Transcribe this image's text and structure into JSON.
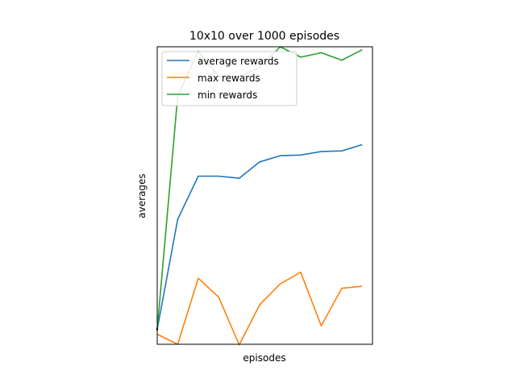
{
  "chart_data": {
    "type": "line",
    "title": "10x10 over 1000 episodes",
    "xlabel": "episodes",
    "ylabel": "averages",
    "x": [
      0,
      1,
      2,
      3,
      4,
      5,
      6,
      7,
      8,
      9,
      10
    ],
    "xlim": [
      0,
      10.5
    ],
    "ylim": [
      -0.5,
      9.5
    ],
    "grid": false,
    "legend_position": "top-left",
    "series": [
      {
        "name": "average rewards",
        "color": "#1f77b4",
        "values": [
          0.0,
          3.7,
          5.15,
          5.15,
          5.08,
          5.63,
          5.84,
          5.86,
          5.98,
          6.0,
          6.21
        ]
      },
      {
        "name": "max rewards",
        "color": "#ff7f0e",
        "values": [
          -0.16,
          -0.5,
          1.72,
          1.08,
          -0.52,
          0.83,
          1.53,
          1.92,
          0.12,
          1.38,
          1.45
        ]
      },
      {
        "name": "min rewards",
        "color": "#2ca02c",
        "values": [
          0.0,
          7.85,
          9.35,
          8.5,
          8.5,
          8.8,
          9.5,
          9.15,
          9.3,
          9.05,
          9.4
        ]
      }
    ]
  }
}
